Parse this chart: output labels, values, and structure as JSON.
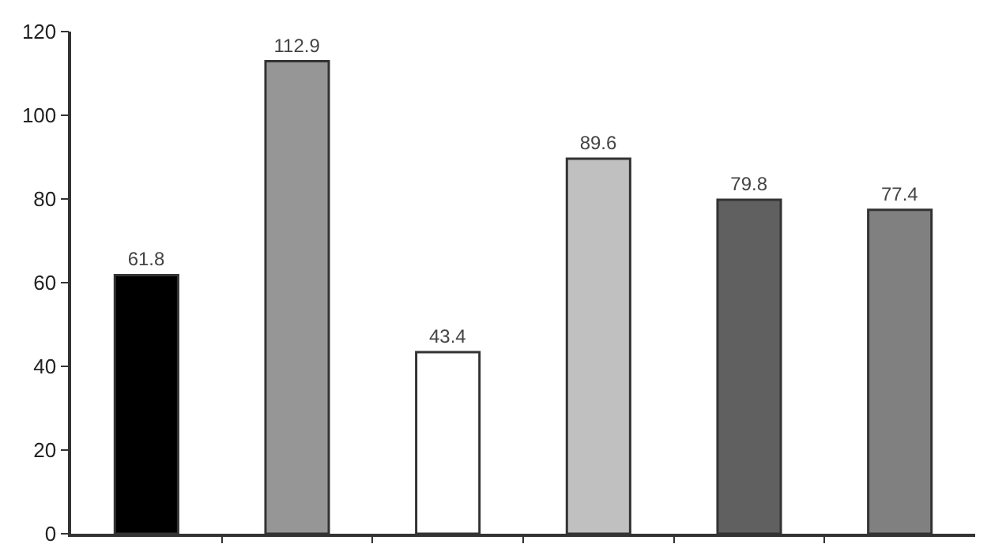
{
  "chart_data": {
    "type": "bar",
    "categories": [
      null,
      null,
      null,
      null,
      null,
      null
    ],
    "values": [
      61.8,
      112.9,
      43.4,
      89.6,
      79.8,
      77.4
    ],
    "colors": [
      "#000000",
      "#969696",
      "#ffffff",
      "#c0c0c0",
      "#606060",
      "#808080"
    ],
    "ylim": [
      0,
      120
    ],
    "yticks": [
      0,
      20,
      40,
      60,
      80,
      100,
      120
    ],
    "data_labels": true
  }
}
